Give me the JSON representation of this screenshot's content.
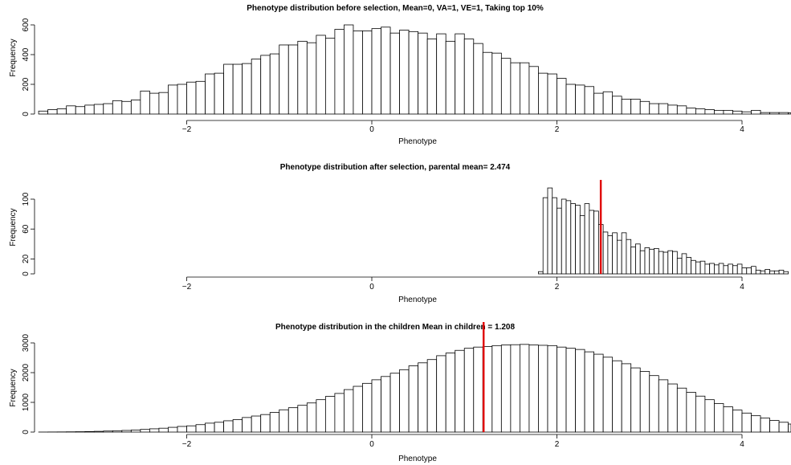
{
  "chart_data": [
    {
      "type": "bar",
      "title": "Phenotype distribution before selection, Mean=0, VA=1, VE=1, Taking top 10%",
      "xlabel": "Phenotype",
      "ylabel": "Frequency",
      "xlim": [
        -3.6,
        4.5
      ],
      "ylim": [
        0,
        600
      ],
      "x_ticks": [
        -2,
        0,
        2,
        4
      ],
      "x_tick_labels": [
        "−2",
        "0",
        "2",
        "4"
      ],
      "y_ticks": [
        0,
        200,
        400,
        600
      ],
      "bin_start": -3.6,
      "bin_width": 0.1,
      "values": [
        20,
        30,
        35,
        55,
        50,
        60,
        65,
        70,
        90,
        85,
        95,
        155,
        140,
        145,
        195,
        200,
        215,
        220,
        270,
        275,
        335,
        335,
        340,
        370,
        395,
        405,
        465,
        465,
        490,
        480,
        530,
        510,
        570,
        600,
        560,
        560,
        575,
        585,
        545,
        565,
        555,
        545,
        505,
        540,
        490,
        540,
        505,
        475,
        415,
        410,
        375,
        345,
        345,
        320,
        275,
        270,
        240,
        200,
        195,
        185,
        140,
        150,
        120,
        100,
        100,
        85,
        70,
        70,
        60,
        55,
        40,
        35,
        30,
        25,
        25,
        20,
        15,
        25,
        10,
        10,
        10,
        8,
        5,
        5,
        5
      ],
      "grid": false,
      "legend": "none"
    },
    {
      "type": "bar",
      "title": "Phenotype distribution after selection, parental mean= 2.474",
      "xlabel": "Phenotype",
      "ylabel": "Frequency",
      "xlim": [
        -2,
        4.5
      ],
      "ylim": [
        0,
        120
      ],
      "x_ticks": [
        -2,
        0,
        2,
        4
      ],
      "x_tick_labels": [
        "−2",
        "0",
        "2",
        "4"
      ],
      "y_ticks": [
        0,
        20,
        60,
        100
      ],
      "bin_start": 1.8,
      "bin_width": 0.05,
      "values": [
        3,
        102,
        115,
        102,
        88,
        100,
        98,
        94,
        92,
        78,
        94,
        85,
        84,
        66,
        56,
        51,
        55,
        45,
        55,
        46,
        36,
        40,
        31,
        35,
        33,
        34,
        30,
        29,
        31,
        30,
        21,
        27,
        22,
        18,
        16,
        17,
        13,
        14,
        12,
        14,
        11,
        13,
        11,
        13,
        8,
        8,
        10,
        5,
        4,
        6,
        4,
        4,
        5,
        3
      ],
      "marker_line": {
        "x": 2.474,
        "color": "#e00000"
      },
      "grid": false,
      "legend": "none"
    },
    {
      "type": "bar",
      "title": "Phenotype distribution in the children Mean in children =  1.208",
      "xlabel": "Phenotype",
      "ylabel": "Frequency",
      "xlim": [
        -3.6,
        4.5
      ],
      "ylim": [
        0,
        3000
      ],
      "x_ticks": [
        -2,
        0,
        2,
        4
      ],
      "x_tick_labels": [
        "−2",
        "0",
        "2",
        "4"
      ],
      "y_ticks": [
        0,
        1000,
        2000,
        3000
      ],
      "bin_start": -3.6,
      "bin_width": 0.1,
      "values": [
        1,
        3,
        5,
        8,
        12,
        18,
        25,
        35,
        45,
        55,
        70,
        90,
        110,
        130,
        160,
        190,
        210,
        250,
        300,
        330,
        380,
        420,
        490,
        540,
        590,
        660,
        750,
        820,
        900,
        980,
        1090,
        1200,
        1300,
        1430,
        1540,
        1640,
        1760,
        1870,
        1980,
        2100,
        2230,
        2330,
        2440,
        2570,
        2660,
        2750,
        2820,
        2860,
        2880,
        2910,
        2930,
        2940,
        2950,
        2930,
        2920,
        2910,
        2860,
        2820,
        2780,
        2700,
        2620,
        2520,
        2400,
        2300,
        2160,
        2040,
        1900,
        1760,
        1620,
        1480,
        1340,
        1210,
        1090,
        960,
        850,
        740,
        640,
        550,
        470,
        390,
        330,
        270,
        220,
        180,
        140,
        110
      ],
      "marker_line": {
        "x": 1.208,
        "color": "#e00000"
      },
      "grid": false,
      "legend": "none"
    }
  ]
}
